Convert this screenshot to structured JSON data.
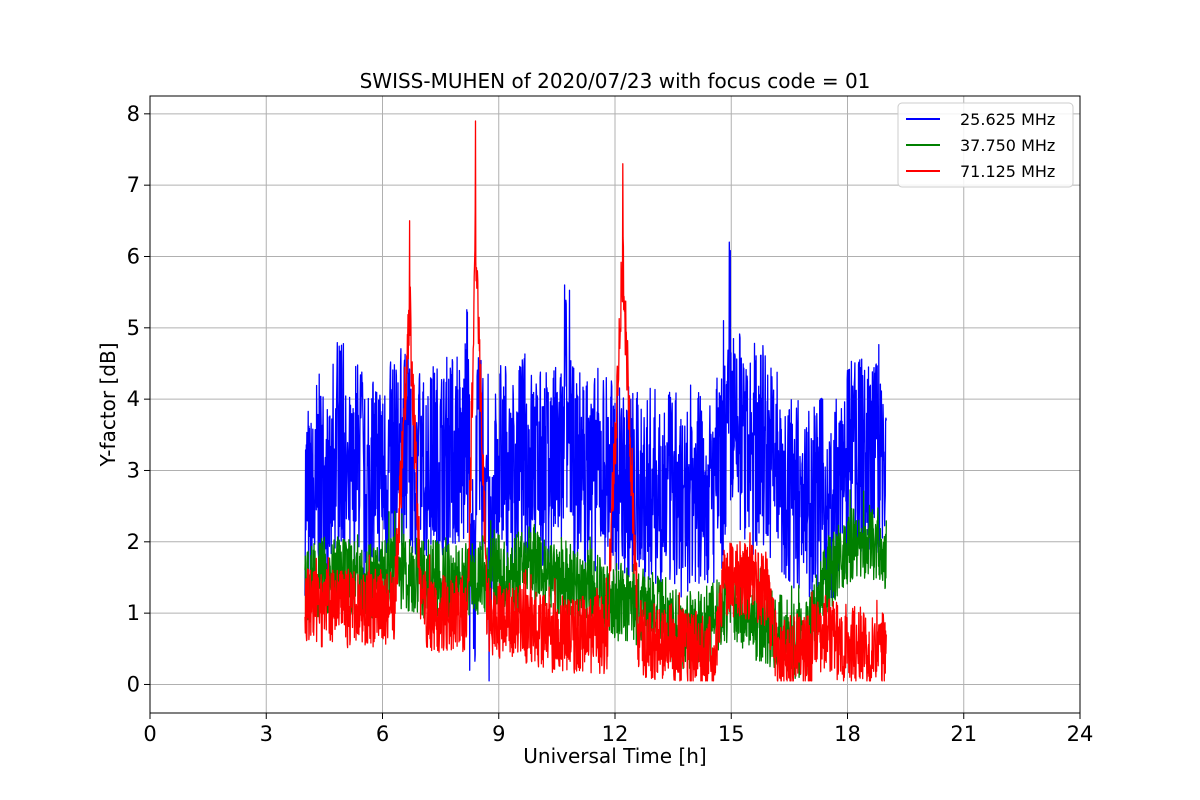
{
  "chart_data": {
    "type": "line",
    "title": "SWISS-MUHEN of 2020/07/23 with focus code = 01",
    "xlabel": "Universal Time [h]",
    "ylabel": "Y-factor [dB]",
    "xlim": [
      0,
      24
    ],
    "ylim": [
      -0.4,
      8.25
    ],
    "xticks": [
      0,
      3,
      6,
      9,
      12,
      15,
      18,
      21,
      24
    ],
    "yticks": [
      0,
      1,
      2,
      3,
      4,
      5,
      6,
      7,
      8
    ],
    "grid": true,
    "legend_position": "top-right",
    "series": [
      {
        "name": "25.625 MHz",
        "color": "#0000ff",
        "x": [
          4.0,
          4.1,
          4.3,
          4.5,
          4.7,
          5.0,
          5.3,
          5.5,
          5.7,
          6.0,
          6.2,
          6.4,
          6.7,
          7.0,
          7.3,
          7.6,
          7.9,
          8.1,
          8.25,
          8.4,
          8.6,
          8.75,
          8.9,
          9.2,
          9.5,
          9.7,
          10.0,
          10.3,
          10.5,
          10.7,
          10.9,
          11.2,
          11.5,
          11.8,
          12.0,
          12.2,
          12.5,
          12.8,
          13.0,
          13.3,
          13.6,
          13.9,
          14.1,
          14.4,
          14.6,
          14.8,
          14.95,
          15.1,
          15.3,
          15.6,
          15.9,
          16.2,
          16.5,
          16.8,
          17.1,
          17.4,
          17.7,
          18.0,
          18.2,
          18.4,
          18.6,
          18.8,
          19.0
        ],
        "y": [
          3.1,
          2.5,
          4.0,
          3.2,
          4.8,
          3.4,
          4.7,
          3.3,
          4.3,
          4.1,
          4.5,
          4.9,
          4.3,
          4.3,
          4.5,
          4.8,
          4.6,
          5.3,
          0.2,
          4.7,
          4.2,
          0.0,
          4.6,
          4.1,
          4.7,
          4.5,
          4.2,
          4.4,
          4.5,
          5.6,
          4.3,
          4.0,
          4.3,
          4.1,
          4.0,
          3.7,
          3.3,
          3.6,
          3.4,
          3.3,
          3.0,
          3.6,
          3.3,
          3.2,
          4.0,
          5.2,
          6.2,
          5.0,
          4.5,
          4.9,
          4.6,
          3.2,
          3.2,
          3.0,
          3.1,
          2.6,
          3.8,
          4.6,
          4.7,
          4.5,
          4.5,
          4.8,
          3.7
        ]
      },
      {
        "name": "37.750 MHz",
        "color": "#008000",
        "x": [
          4.0,
          4.3,
          4.7,
          5.0,
          5.4,
          5.8,
          6.2,
          6.6,
          7.0,
          7.4,
          7.8,
          8.2,
          8.6,
          9.0,
          9.4,
          9.8,
          10.2,
          10.6,
          11.0,
          11.4,
          11.8,
          12.2,
          12.6,
          13.0,
          13.4,
          13.8,
          14.2,
          14.6,
          15.0,
          15.4,
          15.8,
          16.2,
          16.6,
          17.0,
          17.4,
          17.8,
          18.2,
          18.6,
          19.0
        ],
        "y": [
          1.6,
          1.8,
          1.9,
          1.8,
          1.9,
          1.7,
          2.0,
          1.9,
          1.8,
          1.8,
          1.7,
          1.8,
          1.9,
          1.9,
          1.7,
          2.2,
          1.8,
          1.7,
          1.6,
          1.7,
          1.4,
          1.4,
          1.3,
          1.3,
          1.0,
          0.9,
          1.0,
          1.1,
          1.5,
          1.2,
          1.0,
          0.9,
          0.7,
          0.8,
          1.8,
          2.2,
          2.4,
          2.4,
          2.3
        ]
      },
      {
        "name": "71.125 MHz",
        "color": "#ff0000",
        "x": [
          4.0,
          4.5,
          5.0,
          5.5,
          5.9,
          6.3,
          6.7,
          7.0,
          7.5,
          8.0,
          8.2,
          8.4,
          8.7,
          9.0,
          9.4,
          9.7,
          10.0,
          10.4,
          10.7,
          11.0,
          11.4,
          11.8,
          12.2,
          12.6,
          13.0,
          13.3,
          13.6,
          14.0,
          14.35,
          14.6,
          14.8,
          15.15,
          15.5,
          15.9,
          16.2,
          16.6,
          17.0,
          17.3,
          17.7,
          18.1,
          18.5,
          19.0
        ],
        "y": [
          1.3,
          1.3,
          1.3,
          1.3,
          1.3,
          1.3,
          6.5,
          1.25,
          1.2,
          1.2,
          1.2,
          7.9,
          1.15,
          1.1,
          1.05,
          1.0,
          0.9,
          0.85,
          0.85,
          0.85,
          0.85,
          0.85,
          7.3,
          0.8,
          0.75,
          0.7,
          0.65,
          0.6,
          0.55,
          0.5,
          1.8,
          1.8,
          1.75,
          1.65,
          0.55,
          0.55,
          0.6,
          0.85,
          0.75,
          0.7,
          0.65,
          0.7
        ]
      }
    ]
  }
}
